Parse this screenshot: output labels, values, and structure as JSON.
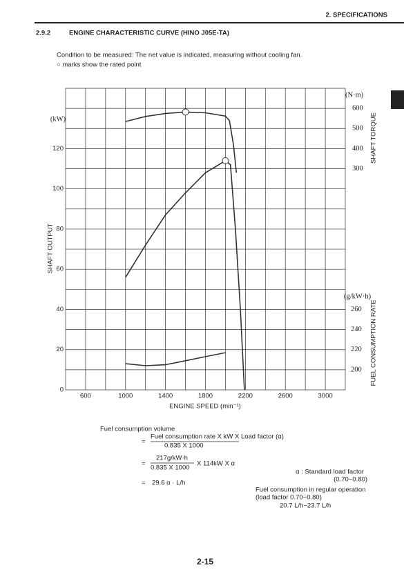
{
  "header": {
    "chapter": "2. SPECIFICATIONS",
    "section_number": "2.9.2",
    "section_title": "ENGINE CHARACTERISTIC CURVE (HINO J05E-TA)"
  },
  "notes": [
    "Condition to be measured: The net value is indicated, measuring without cooling fan.",
    "○ marks show the rated point"
  ],
  "chart_data": {
    "type": "line",
    "x_label": "ENGINE SPEED (min⁻¹)",
    "y_unit": "(kW)",
    "y_label": "SHAFT OUTPUT",
    "y2_unit": "(N·m)",
    "y2_label": "SHAFT TORQUE",
    "y3_unit": "(g/kW·h)",
    "y3_label": "FUEL CONSUMPTION RATE",
    "xlim": [
      400,
      3200
    ],
    "xticks": [
      600,
      1000,
      1400,
      1800,
      2200,
      2600,
      3000
    ],
    "xgrid": [
      400,
      600,
      800,
      1000,
      1200,
      1400,
      1600,
      1800,
      2000,
      2200,
      2400,
      2600,
      2800,
      3000,
      3200
    ],
    "ylim": [
      0,
      150
    ],
    "yticks": [
      0,
      20,
      40,
      60,
      80,
      100,
      120
    ],
    "ygrid": [
      0,
      10,
      20,
      30,
      40,
      50,
      60,
      70,
      80,
      90,
      100,
      110,
      120,
      130,
      140,
      150
    ],
    "y2lim": [
      -800,
      700
    ],
    "y2ticks": [
      300,
      400,
      500,
      600
    ],
    "y3lim": [
      180,
      480
    ],
    "y3ticks": [
      200,
      220,
      240,
      260
    ],
    "color": "#333333",
    "series": [
      {
        "axis": "y2",
        "x": [
          1000,
          1200,
          1400,
          1600,
          1800,
          2000,
          2040,
          2080,
          2110
        ],
        "values": [
          535,
          560,
          575,
          582,
          578,
          562,
          540,
          420,
          280
        ],
        "rated_marker": 3
      },
      {
        "axis": "y",
        "x": [
          1000,
          1200,
          1400,
          1600,
          1800,
          2000,
          2050,
          2100,
          2150,
          2190
        ],
        "values": [
          56,
          72,
          87,
          98,
          108,
          114,
          112,
          80,
          40,
          0
        ],
        "rated_marker": 5
      },
      {
        "axis": "y3",
        "x": [
          1000,
          1200,
          1400,
          1600,
          1800,
          2000
        ],
        "values": [
          206,
          204,
          205,
          209,
          213,
          217
        ]
      }
    ]
  },
  "formula": {
    "label": "Fuel consumption volume",
    "equals": "=",
    "numerator_1": "Fuel consumption rate X kW X Load factor (α)",
    "denominator_1": "0.835 X 1000",
    "numerator_2": "217g/kW·h",
    "denominator_2": "0.835 X 1000",
    "factor_2": "X 114kW X α",
    "result": "29.6 α · L/h"
  },
  "side_notes": [
    "α : Standard load factor",
    "(0.70~0.80)",
    "Fuel consumption in regular operation",
    "(load factor 0.70~0.80)",
    "20.7 L/h~23.7 L/h"
  ],
  "footer": {
    "page": "2-15"
  }
}
